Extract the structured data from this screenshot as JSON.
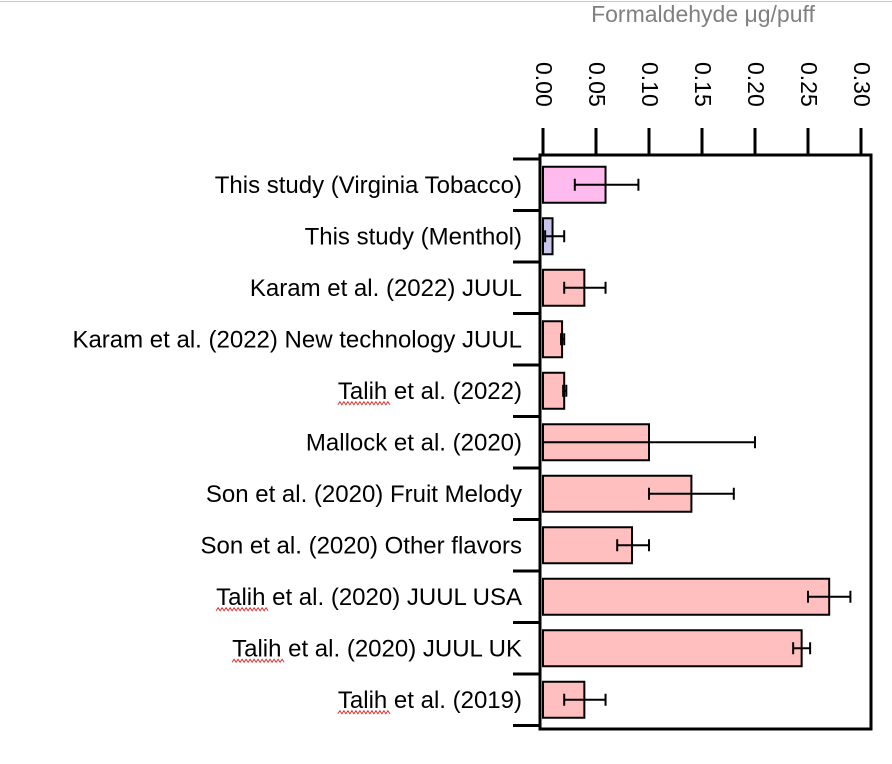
{
  "chart_data": {
    "type": "bar",
    "orientation": "horizontal",
    "xlabel": "Formaldehyde μg/puff",
    "xlim": [
      0,
      0.3
    ],
    "x_ticks": [
      "0.00",
      "0.05",
      "0.10",
      "0.15",
      "0.20",
      "0.25",
      "0.30"
    ],
    "x_tick_values": [
      0,
      0.05,
      0.1,
      0.15,
      0.2,
      0.25,
      0.3
    ],
    "axis_position": "top",
    "categories": [
      "This study (Virginia Tobacco)",
      "This study (Menthol)",
      "Karam et al. (2022) JUUL",
      "Karam et al.  (2022) New technology JUUL",
      "Talih et al. (2022)",
      "Mallock et al. (2020)",
      "Son et al. (2020) Fruit Melody",
      "Son et al.  (2020) Other flavors",
      "Talih et al. (2020) JUUL USA",
      "Talih et al. (2020) JUUL UK",
      "Talih et al. (2019)"
    ],
    "values": [
      0.059,
      0.009,
      0.039,
      0.018,
      0.02,
      0.1,
      0.14,
      0.084,
      0.27,
      0.244,
      0.039
    ],
    "error_low": [
      0.03,
      0.002,
      0.02,
      0.017,
      0.019,
      0.0,
      0.1,
      0.07,
      0.25,
      0.236,
      0.02
    ],
    "error_high": [
      0.09,
      0.02,
      0.059,
      0.02,
      0.022,
      0.2,
      0.18,
      0.1,
      0.29,
      0.252,
      0.059
    ],
    "colors": {
      "this_study_virginia": "#ffbbee",
      "this_study_menthol": "#c8c6ea",
      "literature": "#ffbfbf",
      "bar_stroke": "#000000",
      "axis_label": "#808080"
    },
    "spellcheck_underlined": [
      4,
      8,
      9,
      10
    ],
    "spellcheck_word": "Talih"
  }
}
